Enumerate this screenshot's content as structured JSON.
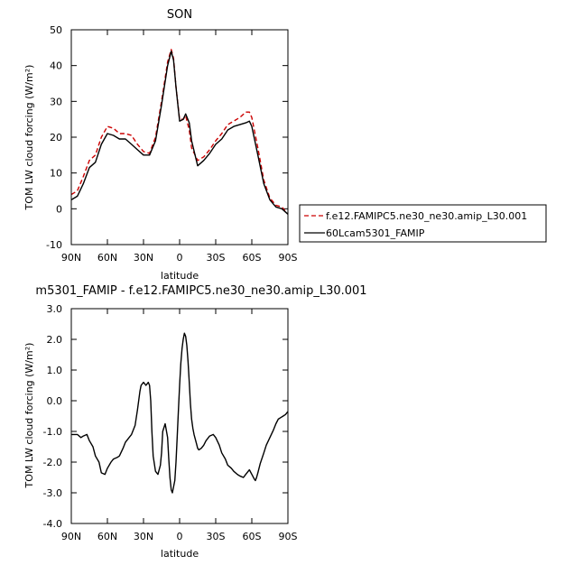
{
  "chart_data": [
    {
      "type": "line",
      "title": "SON",
      "xlabel": "latitude",
      "ylabel": "TOM LW cloud forcing (W/m²)",
      "xlim": [
        90,
        -90
      ],
      "ylim": [
        -10,
        50
      ],
      "xticks": [
        90,
        60,
        30,
        0,
        -30,
        -60,
        -90
      ],
      "xtick_labels": [
        "90N",
        "60N",
        "30N",
        "0",
        "30S",
        "60S",
        "90S"
      ],
      "yticks": [
        -10,
        0,
        10,
        20,
        30,
        40,
        50
      ],
      "ytick_labels": [
        "-10",
        "0",
        "10",
        "20",
        "30",
        "40",
        "50"
      ],
      "legend": "right",
      "series": [
        {
          "name": "f.e12.FAMIPC5.ne30_ne30.amip_L30.001",
          "color": "#cc0000",
          "style": "dashed",
          "x": [
            90,
            85,
            80,
            75,
            70,
            65,
            60,
            55,
            50,
            45,
            40,
            35,
            30,
            25,
            20,
            15,
            10,
            7,
            5,
            3,
            0,
            -3,
            -5,
            -8,
            -10,
            -15,
            -20,
            -25,
            -30,
            -35,
            -40,
            -45,
            -50,
            -55,
            -58,
            -60,
            -65,
            -70,
            -75,
            -80,
            -85,
            -90
          ],
          "y": [
            4,
            5,
            9,
            13.5,
            15,
            20,
            23,
            22.5,
            21,
            21,
            20.5,
            18,
            16,
            15.5,
            20,
            30,
            41,
            44.5,
            42,
            34,
            25,
            25,
            26,
            22,
            17,
            13.5,
            14.5,
            16.5,
            19,
            21,
            23.5,
            24.5,
            25.5,
            27,
            27,
            25.5,
            17,
            8,
            3,
            1,
            0.5,
            -1.5
          ]
        },
        {
          "name": "60Lcam5301_FAMIP",
          "color": "#000000",
          "style": "solid",
          "x": [
            90,
            85,
            80,
            75,
            70,
            65,
            60,
            55,
            50,
            45,
            40,
            35,
            30,
            25,
            20,
            15,
            10,
            7,
            5,
            3,
            0,
            -3,
            -5,
            -8,
            -10,
            -15,
            -20,
            -25,
            -30,
            -35,
            -40,
            -45,
            -50,
            -55,
            -58,
            -60,
            -65,
            -70,
            -75,
            -80,
            -85,
            -90
          ],
          "y": [
            2.5,
            3.5,
            7,
            11.5,
            13,
            18,
            21,
            20.5,
            19.5,
            19.5,
            18,
            16.5,
            15,
            15,
            19,
            29,
            40,
            44,
            41.5,
            34,
            24.5,
            25,
            26.5,
            24,
            19,
            12,
            13.5,
            15.5,
            18,
            19.5,
            22,
            23,
            23.5,
            24,
            24.5,
            23,
            15,
            7,
            2.5,
            0.5,
            0,
            -1.5
          ]
        }
      ]
    },
    {
      "type": "line",
      "title": "m5301_FAMIP - f.e12.FAMIPC5.ne30_ne30.amip_L30.001",
      "xlabel": "latitude",
      "ylabel": "TOM LW cloud forcing (W/m²)",
      "xlim": [
        90,
        -90
      ],
      "ylim": [
        -4,
        3
      ],
      "xticks": [
        90,
        60,
        30,
        0,
        -30,
        -60,
        -90
      ],
      "xtick_labels": [
        "90N",
        "60N",
        "30N",
        "0",
        "30S",
        "60S",
        "90S"
      ],
      "yticks": [
        -4,
        -3,
        -2,
        -1,
        0,
        1,
        2,
        3
      ],
      "ytick_labels": [
        "-4.0",
        "-3.0",
        "-2.0",
        "-1.0",
        "0.0",
        "1.0",
        "2.0",
        "3.0"
      ],
      "series": [
        {
          "color": "#000000",
          "style": "solid",
          "x": [
            90,
            87,
            85,
            82,
            80,
            77,
            75,
            72,
            70,
            67,
            65,
            62,
            60,
            57,
            55,
            52,
            50,
            47,
            45,
            42,
            40,
            37,
            35,
            33,
            32,
            30,
            28,
            26,
            25,
            24,
            23,
            22,
            20,
            18,
            16,
            15,
            14,
            12,
            10,
            9,
            8,
            7,
            6,
            4,
            3,
            2,
            1,
            0,
            -1,
            -2,
            -3,
            -4,
            -5,
            -6,
            -7,
            -8,
            -9,
            -10,
            -11,
            -12,
            -14,
            -15,
            -16,
            -18,
            -20,
            -22,
            -25,
            -28,
            -30,
            -33,
            -35,
            -38,
            -40,
            -43,
            -45,
            -48,
            -50,
            -53,
            -55,
            -57,
            -58,
            -60,
            -62,
            -63,
            -64,
            -65,
            -67,
            -70,
            -72,
            -75,
            -78,
            -80,
            -82,
            -84,
            -86,
            -88,
            -90
          ],
          "y": [
            -1.1,
            -1.1,
            -1.1,
            -1.2,
            -1.15,
            -1.1,
            -1.3,
            -1.5,
            -1.8,
            -2.0,
            -2.35,
            -2.4,
            -2.2,
            -2.0,
            -1.9,
            -1.85,
            -1.8,
            -1.55,
            -1.35,
            -1.2,
            -1.1,
            -0.8,
            -0.3,
            0.3,
            0.5,
            0.6,
            0.5,
            0.6,
            0.5,
            0.0,
            -1.0,
            -1.8,
            -2.3,
            -2.4,
            -2.1,
            -1.7,
            -1.0,
            -0.75,
            -1.2,
            -1.9,
            -2.5,
            -2.9,
            -3.0,
            -2.6,
            -2.0,
            -1.2,
            -0.3,
            0.5,
            1.2,
            1.7,
            2.0,
            2.2,
            2.1,
            1.8,
            1.3,
            0.6,
            -0.1,
            -0.6,
            -0.9,
            -1.1,
            -1.4,
            -1.55,
            -1.6,
            -1.55,
            -1.45,
            -1.3,
            -1.15,
            -1.1,
            -1.2,
            -1.45,
            -1.7,
            -1.9,
            -2.1,
            -2.2,
            -2.3,
            -2.4,
            -2.45,
            -2.5,
            -2.4,
            -2.3,
            -2.25,
            -2.4,
            -2.55,
            -2.6,
            -2.5,
            -2.35,
            -2.05,
            -1.7,
            -1.45,
            -1.2,
            -0.95,
            -0.75,
            -0.6,
            -0.55,
            -0.5,
            -0.45,
            -0.35
          ]
        }
      ]
    }
  ]
}
